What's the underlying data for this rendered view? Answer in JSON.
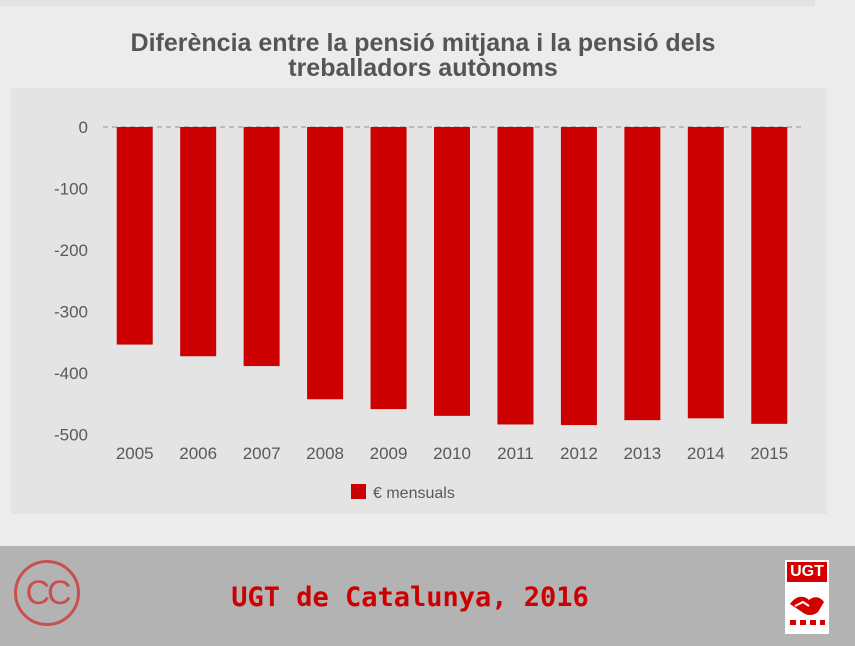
{
  "chart_title_line1": "Diferència entre la pensió mitjana i la pensió dels",
  "chart_title_line2": "treballadors autònoms",
  "chart_data": {
    "type": "bar",
    "title": "Diferència entre la pensió mitjana i la pensió dels treballadors autònoms",
    "categories": [
      "2005",
      "2006",
      "2007",
      "2008",
      "2009",
      "2010",
      "2011",
      "2012",
      "2013",
      "2014",
      "2015"
    ],
    "series": [
      {
        "name": "€ mensuals",
        "color": "#cc0000",
        "values": [
          -354,
          -373,
          -389,
          -443,
          -459,
          -470,
          -484,
          -485,
          -477,
          -474,
          -483
        ]
      }
    ],
    "y_ticks": [
      "0",
      "-100",
      "-200",
      "-300",
      "-400",
      "-500"
    ],
    "ylim": [
      -500,
      0
    ],
    "grid": "dashed line at 0",
    "legend_position": "bottom"
  },
  "footer": {
    "cc_label": "CC",
    "credit": "UGT de Catalunya, 2016",
    "logo_text": "UGT"
  }
}
